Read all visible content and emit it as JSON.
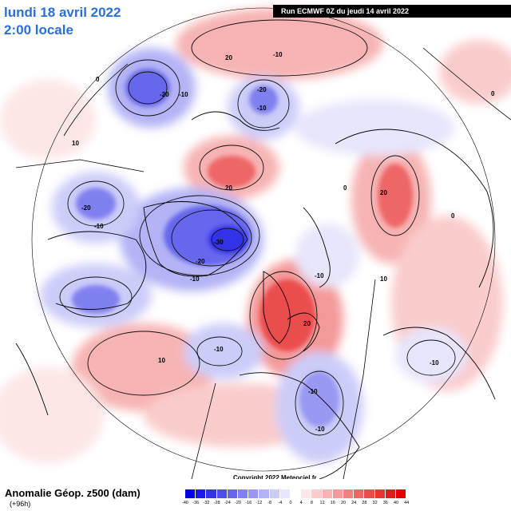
{
  "header": {
    "date": "lundi 18 avril 2022",
    "time": "2:00 locale",
    "run": "Run ECMWF 0Z du jeudi 14 avril 2022"
  },
  "footer": {
    "product": "Anomalie Géop. z500 (dam)",
    "lead": "(+96h)",
    "copyright": "Copyright 2022 Meteociel.fr"
  },
  "legend": {
    "ticks": [
      "-40",
      "-36",
      "-32",
      "-28",
      "-24",
      "-20",
      "-16",
      "-12",
      "-8",
      "-4",
      "0",
      "4",
      "8",
      "12",
      "16",
      "20",
      "24",
      "28",
      "32",
      "36",
      "40",
      "44"
    ],
    "colors": [
      "#0000e6",
      "#1a1ae8",
      "#3333ea",
      "#4d4dec",
      "#6666ee",
      "#8080f0",
      "#9999f3",
      "#b3b3f6",
      "#ccccf9",
      "#e6e6fc",
      "#ffffff",
      "#fde6e6",
      "#facccc",
      "#f7b3b3",
      "#f49999",
      "#f18080",
      "#ee6666",
      "#eb4d4d",
      "#e83333",
      "#e51a1a",
      "#e20000"
    ]
  },
  "map_labels": {
    "a": "20",
    "b": "-10",
    "c": "10",
    "d": "-20",
    "e": "0",
    "f": "-30"
  },
  "colors": {
    "title": "#2b6fd6",
    "positive_strong": "#e83333",
    "positive_weak": "#f7b3b3",
    "negative_strong": "#3333ea",
    "negative_weak": "#b3b3f6"
  }
}
